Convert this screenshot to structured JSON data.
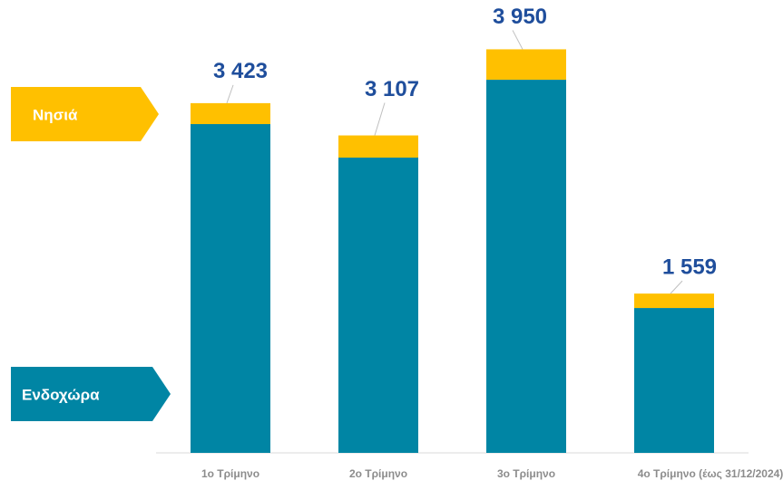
{
  "chart_data": {
    "type": "stacked-bar",
    "categories": [
      "1ο Τρίμηνο",
      "2ο Τρίμηνο",
      "3ο Τρίμηνο",
      "4ο Τρίμηνο (έως 31/12/2024)"
    ],
    "series": [
      {
        "name": "Ενδοχώρα",
        "color": "#0085a4",
        "values": [
          3218,
          2890,
          3652,
          1418
        ]
      },
      {
        "name": "Νησιά",
        "color": "#ffc000",
        "values": [
          205,
          217,
          298,
          141
        ]
      }
    ],
    "totals": [
      3423,
      3107,
      3950,
      1559
    ],
    "total_labels": [
      "3 423",
      "3 107",
      "3 950",
      "1 559"
    ],
    "total_label_color": "#1f4e9c"
  }
}
